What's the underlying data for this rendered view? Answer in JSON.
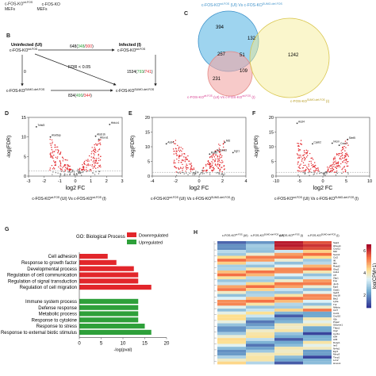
{
  "panel_a": {
    "line1": "c-FOS-KO",
    "line1_sup": "wt-FOS",
    "line1_tail": "c-FOS-KO",
    "line2": "MEFs",
    "line2_tail": "MEFs"
  },
  "panel_b": {
    "label": "B",
    "uninfected": "Uninfected (UI)",
    "infected": "Infected (I)",
    "node_tl": "c-FOS-KO",
    "node_tl_sup": "wt-FOS",
    "node_tr": "c-FOS-KO",
    "node_tr_sup": "wt-FOS",
    "node_bl": "c-FOS-KO",
    "node_bl_sup": "SUMO-def-FOS",
    "node_br": "c-FOS-KO",
    "node_br_sup": "SUMO-def-FOS",
    "top_total": "648",
    "top_up": "348",
    "top_down": "300",
    "left_total": "0",
    "right_total": "1534",
    "right_up": "793",
    "right_down": "741",
    "bottom_total": "834",
    "bottom_up": "490",
    "bottom_down": "344",
    "fdr": "FDR < 0.05"
  },
  "panel_c": {
    "label": "C",
    "title_top": "c-FOS-KO",
    "title_top_sup": "wt-FOS",
    "title_top_mid": " (UI) Vs c-FOS-KO",
    "title_top_sup2": "SUMO-def-FOS",
    "title_bot_left": "c-FOS-KO",
    "title_bot_left_sup": "wt-FOS",
    "title_bot_left_mid": " (UI) Vs c-FOS-KO",
    "title_bot_left_sup2": "wt-FOS",
    "title_bot_left_tail": " (I)",
    "title_bot_right": "c-FOS-KO",
    "title_bot_right_sup": "SUMO-def-FOS",
    "title_bot_right_tail": " (I)",
    "n394": "394",
    "n132": "132",
    "n257": "257",
    "n51": "51",
    "n1242": "1242",
    "n231": "231",
    "n109": "109"
  },
  "volcano": [
    {
      "label": "D",
      "ylabel": "-log(FDR)",
      "xlabel": "log2 FC",
      "xticks": [
        "-3",
        "-2",
        "-1",
        "0",
        "1",
        "2",
        "3"
      ],
      "yticks": [
        "15",
        "10",
        "5",
        "0"
      ],
      "genes": [
        "Tnfsf3",
        "Alox5ap",
        "Abcb1b",
        "Hbb-b1",
        "Hba-a1"
      ],
      "caption": "c-FOS-KO",
      "caption_sup": "wt-FOS",
      "caption_mid": "(UI) Vs c-FOS-KO",
      "caption_sup2": "wt-FOS",
      "caption_tail": "(I)"
    },
    {
      "label": "E",
      "ylabel": "-log(FDR)",
      "xlabel": "log2 FC",
      "xticks": [
        "-4",
        "-2",
        "0",
        "2",
        "4"
      ],
      "yticks": [
        "20",
        "15",
        "10",
        "5",
        "0"
      ],
      "genes": [
        "Ascl4",
        "Rpl32",
        "Serpina3",
        "Mt2",
        "Egr1"
      ],
      "caption": "c-FOS-KO",
      "caption_sup": "wt-FOS",
      "caption_mid": "(UI) Vs c-FOS-KO",
      "caption_sup2": "SUMO-def-FOS",
      "caption_tail": "(I)"
    },
    {
      "label": "F",
      "ylabel": "-log(FDR)",
      "xlabel": "log2 FC",
      "xticks": [
        "-10",
        "-5",
        "0",
        "5",
        "10"
      ],
      "yticks": [
        "20",
        "15",
        "10",
        "5",
        "0"
      ],
      "genes": [
        "Ascl4",
        "Cpeb2",
        "Nrcm",
        "Cxcr2",
        "Slmf5"
      ],
      "caption": "c-FOS-KO",
      "caption_sup": "wt-FOS",
      "caption_mid": "(UI) Vs c-FOS-KO",
      "caption_sup2": "SUMO-def-FOS",
      "caption_tail": "(I)"
    }
  ],
  "panel_g": {
    "label": "G",
    "go_title": "GO: Biological Process",
    "legend_down": "Downregulated",
    "legend_up": "Upregulated",
    "xlabel": "-log(pval)",
    "colors": {
      "down": "#e2262b",
      "up": "#2ea03a"
    }
  },
  "chart_data": {
    "type": "bar",
    "orientation": "horizontal",
    "categories": [
      "Cell adhesion",
      "Response to growth factor",
      "Developmental process",
      "Regulation of cell communication",
      "Regulation of signal transduction",
      "Regulation of cell migration",
      "Immune system process",
      "Defense response",
      "Metabolic process",
      "Response to cytokine",
      "Response to stress",
      "Response to external biotic stimulus"
    ],
    "series": [
      {
        "name": "Downregulated",
        "values": [
          6.5,
          8.5,
          12.5,
          13.5,
          13.5,
          16.5,
          null,
          null,
          null,
          null,
          null,
          null
        ]
      },
      {
        "name": "Upregulated",
        "values": [
          null,
          null,
          null,
          null,
          null,
          null,
          13.5,
          13.5,
          13.5,
          13.5,
          15,
          16.5
        ]
      }
    ],
    "xlabel": "-log(pval)",
    "xlim": [
      0,
      20
    ],
    "xticks": [
      "0",
      "5",
      "10",
      "15",
      "20"
    ]
  },
  "panel_h": {
    "label": "H",
    "colorbar_title": "log(CPM+1)",
    "colorbar_ticks": [
      "6",
      "4",
      "2"
    ],
    "col_headers": [
      {
        "a": "c-FOS-KO",
        "s": "wt-FOS",
        "t": " (UI)"
      },
      {
        "a": "c-FOS-KO",
        "s": "SUMO-def-FOS",
        "t": " (UI)"
      },
      {
        "a": "c-FOS-KO",
        "s": "wt-FOS",
        "t": " (I)"
      },
      {
        "a": "c-FOS-KO",
        "s": "SUMO-def-FOS",
        "t": " (I)"
      }
    ],
    "genes": [
      "Saa3",
      "Hba-a1",
      "Cxcl11",
      "Mt2",
      "Socs3",
      "Ccl2",
      "Il6",
      "Ifit1",
      "Rsad2",
      "Gbp2",
      "Cd14",
      "Irf7",
      "Zbp1",
      "Fos",
      "Junb",
      "Egr2",
      "Oasl1",
      "Isg15",
      "Usp18",
      "Bst2",
      "Ly6a",
      "Tnf",
      "Nfkbia",
      "Ccl7",
      "Cxcl1",
      "Cxcl10",
      "Il1b",
      "Ptgs2",
      "Serpine1",
      "Thbs1",
      "Ctgf",
      "Cyr61",
      "Klf4",
      "Atf3",
      "Dusp1",
      "Ier3",
      "Nr4a1",
      "Egr1",
      "Mmp3",
      "Timp1",
      "Lcn2",
      "Hmox1"
    ]
  }
}
